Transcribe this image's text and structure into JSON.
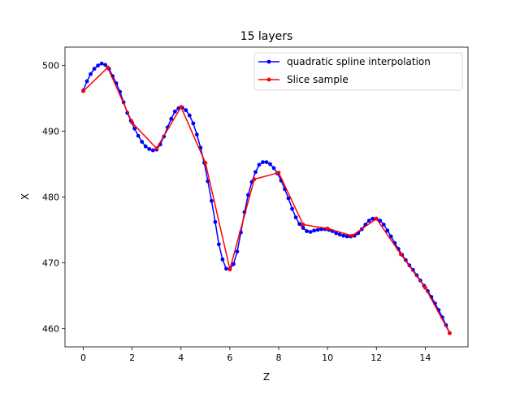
{
  "chart_data": {
    "type": "line",
    "title": "15 layers",
    "xlabel": "Z",
    "ylabel": "X",
    "xlim": [
      -0.75,
      15.75
    ],
    "ylim": [
      457.2,
      502.8
    ],
    "xticks": [
      0,
      2,
      4,
      6,
      8,
      10,
      12,
      14
    ],
    "yticks": [
      460,
      470,
      480,
      490,
      500
    ],
    "grid": false,
    "legend_position": "top-right",
    "series": [
      {
        "name": "quadratic spline interpolation",
        "color": "#0000ff",
        "marker": "dot",
        "points": [
          [
            0.0,
            496.2
          ],
          [
            0.15,
            497.6
          ],
          [
            0.3,
            498.7
          ],
          [
            0.45,
            499.5
          ],
          [
            0.6,
            500.0
          ],
          [
            0.75,
            500.3
          ],
          [
            0.9,
            500.1
          ],
          [
            1.05,
            499.5
          ],
          [
            1.2,
            498.4
          ],
          [
            1.35,
            497.3
          ],
          [
            1.5,
            496.0
          ],
          [
            1.65,
            494.4
          ],
          [
            1.8,
            492.8
          ],
          [
            1.95,
            491.6
          ],
          [
            2.1,
            490.4
          ],
          [
            2.25,
            489.3
          ],
          [
            2.4,
            488.4
          ],
          [
            2.55,
            487.7
          ],
          [
            2.7,
            487.3
          ],
          [
            2.85,
            487.1
          ],
          [
            3.0,
            487.2
          ],
          [
            3.15,
            488.0
          ],
          [
            3.3,
            489.2
          ],
          [
            3.45,
            490.6
          ],
          [
            3.6,
            491.9
          ],
          [
            3.75,
            493.0
          ],
          [
            3.9,
            493.5
          ],
          [
            4.05,
            493.6
          ],
          [
            4.2,
            493.2
          ],
          [
            4.35,
            492.4
          ],
          [
            4.5,
            491.2
          ],
          [
            4.65,
            489.5
          ],
          [
            4.8,
            487.5
          ],
          [
            4.95,
            485.2
          ],
          [
            5.1,
            482.4
          ],
          [
            5.25,
            479.4
          ],
          [
            5.4,
            476.2
          ],
          [
            5.55,
            472.8
          ],
          [
            5.7,
            470.5
          ],
          [
            5.85,
            469.1
          ],
          [
            6.0,
            469.0
          ],
          [
            6.15,
            469.8
          ],
          [
            6.3,
            471.7
          ],
          [
            6.45,
            474.6
          ],
          [
            6.6,
            477.7
          ],
          [
            6.75,
            480.3
          ],
          [
            6.9,
            482.3
          ],
          [
            7.05,
            483.8
          ],
          [
            7.2,
            484.9
          ],
          [
            7.35,
            485.3
          ],
          [
            7.5,
            485.3
          ],
          [
            7.65,
            485.0
          ],
          [
            7.8,
            484.4
          ],
          [
            7.95,
            483.6
          ],
          [
            8.1,
            482.5
          ],
          [
            8.25,
            481.2
          ],
          [
            8.4,
            479.8
          ],
          [
            8.55,
            478.2
          ],
          [
            8.7,
            476.9
          ],
          [
            8.85,
            475.9
          ],
          [
            9.0,
            475.3
          ],
          [
            9.15,
            474.8
          ],
          [
            9.3,
            474.7
          ],
          [
            9.45,
            474.9
          ],
          [
            9.6,
            475.0
          ],
          [
            9.75,
            475.1
          ],
          [
            9.9,
            475.1
          ],
          [
            10.05,
            475.0
          ],
          [
            10.2,
            474.8
          ],
          [
            10.35,
            474.5
          ],
          [
            10.5,
            474.3
          ],
          [
            10.65,
            474.1
          ],
          [
            10.8,
            474.0
          ],
          [
            10.95,
            474.0
          ],
          [
            11.1,
            474.1
          ],
          [
            11.25,
            474.5
          ],
          [
            11.4,
            475.1
          ],
          [
            11.55,
            475.8
          ],
          [
            11.7,
            476.4
          ],
          [
            11.85,
            476.7
          ],
          [
            12.0,
            476.7
          ],
          [
            12.15,
            476.4
          ],
          [
            12.3,
            475.8
          ],
          [
            12.45,
            474.9
          ],
          [
            12.6,
            474.0
          ],
          [
            12.75,
            473.0
          ],
          [
            12.9,
            472.1
          ],
          [
            13.05,
            471.2
          ],
          [
            13.2,
            470.4
          ],
          [
            13.35,
            469.6
          ],
          [
            13.5,
            468.9
          ],
          [
            13.65,
            468.1
          ],
          [
            13.8,
            467.3
          ],
          [
            13.95,
            466.5
          ],
          [
            14.1,
            465.7
          ],
          [
            14.25,
            464.8
          ],
          [
            14.4,
            463.8
          ],
          [
            14.55,
            462.8
          ],
          [
            14.7,
            461.7
          ],
          [
            14.85,
            460.5
          ],
          [
            15.0,
            459.3
          ]
        ]
      },
      {
        "name": "Slice sample",
        "color": "#ff0000",
        "marker": "dot",
        "points": [
          [
            0,
            496.1
          ],
          [
            1,
            499.7
          ],
          [
            2,
            491.3
          ],
          [
            3,
            487.4
          ],
          [
            4,
            493.7
          ],
          [
            5,
            485.2
          ],
          [
            6,
            469.0
          ],
          [
            7,
            482.7
          ],
          [
            8,
            483.7
          ],
          [
            9,
            475.8
          ],
          [
            10,
            475.2
          ],
          [
            11,
            474.1
          ],
          [
            12,
            476.7
          ],
          [
            13,
            471.3
          ],
          [
            14,
            466.2
          ],
          [
            15,
            459.3
          ]
        ]
      }
    ]
  }
}
